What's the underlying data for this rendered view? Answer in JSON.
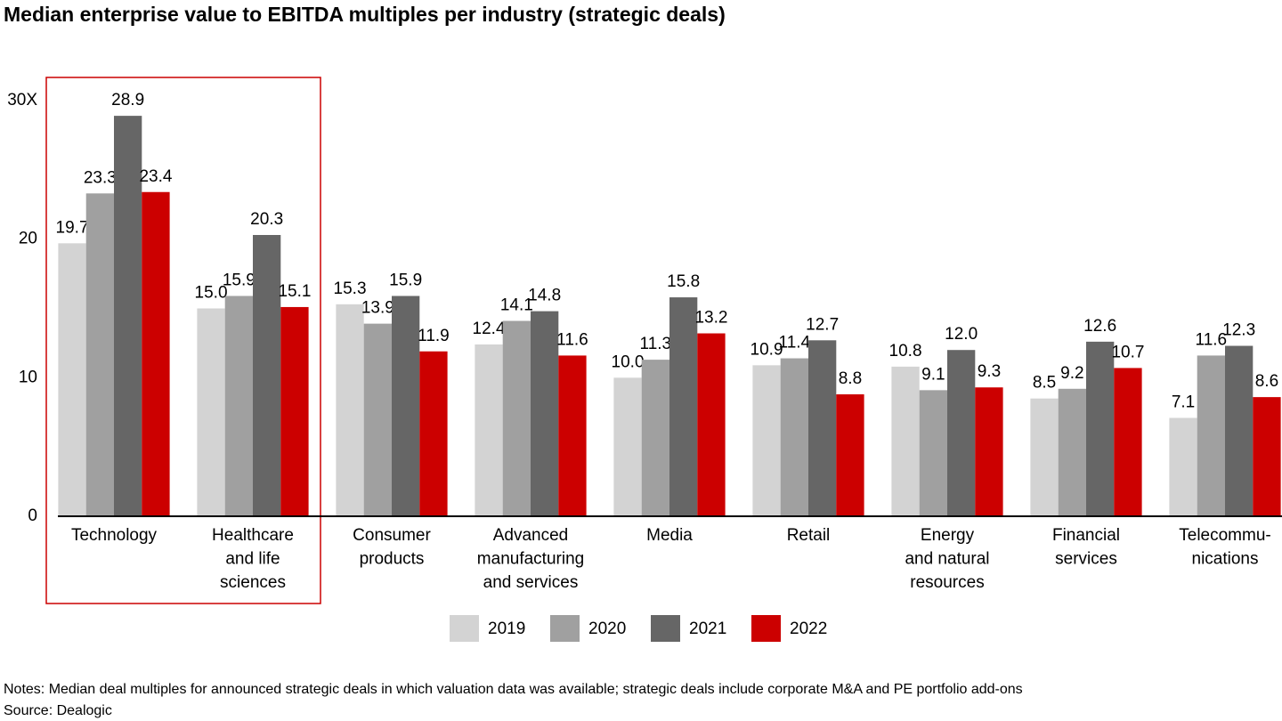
{
  "chart_data": {
    "type": "bar",
    "title": "Median enterprise value to EBITDA multiples per industry (strategic deals)",
    "categories": [
      [
        "Technology"
      ],
      [
        "Healthcare",
        "and life",
        "sciences"
      ],
      [
        "Consumer",
        "products"
      ],
      [
        "Advanced",
        "manufacturing",
        "and services"
      ],
      [
        "Media"
      ],
      [
        "Retail"
      ],
      [
        "Energy",
        "and natural",
        "resources"
      ],
      [
        "Financial",
        "services"
      ],
      [
        "Telecommu-",
        "nications"
      ]
    ],
    "series": [
      {
        "name": "2019",
        "color": "#d3d3d3",
        "values": [
          19.7,
          15.0,
          15.3,
          12.4,
          10.0,
          10.9,
          10.8,
          8.5,
          7.1
        ],
        "value_labels": [
          "19.7",
          "15.0",
          "15.3",
          "12.4",
          "10.0",
          "10.9",
          "10.8",
          "8.5",
          "7.1"
        ]
      },
      {
        "name": "2020",
        "color": "#a0a0a0",
        "values": [
          23.3,
          15.9,
          13.9,
          14.1,
          11.3,
          11.4,
          9.1,
          9.2,
          11.6
        ],
        "value_labels": [
          "23.3",
          "15.9",
          "13.9",
          "14.1",
          "11.3",
          "11.4",
          "9.1",
          "9.2",
          "11.6"
        ]
      },
      {
        "name": "2021",
        "color": "#666666",
        "values": [
          28.9,
          20.3,
          15.9,
          14.8,
          15.8,
          12.7,
          12.0,
          12.6,
          12.3
        ],
        "value_labels": [
          "28.9",
          "20.3",
          "15.9",
          "14.8",
          "15.8",
          "12.7",
          "12.0",
          "12.6",
          "12.3"
        ]
      },
      {
        "name": "2022",
        "color": "#cc0000",
        "values": [
          23.4,
          15.1,
          11.9,
          11.6,
          13.2,
          8.8,
          9.3,
          10.7,
          8.6
        ],
        "value_labels": [
          "23.4",
          "15.1",
          "11.9",
          "11.6",
          "13.2",
          "8.8",
          "9.3",
          "10.7",
          "8.6"
        ]
      }
    ],
    "ylim": [
      0,
      30
    ],
    "yticks": [
      0,
      10,
      20,
      {
        "value": 30,
        "label": "30X"
      }
    ],
    "grid": false,
    "notes": "Notes: Median deal multiples for announced strategic deals in which valuation data was available; strategic deals include corporate M&A and PE portfolio add-ons",
    "source": "Source: Dealogic"
  }
}
